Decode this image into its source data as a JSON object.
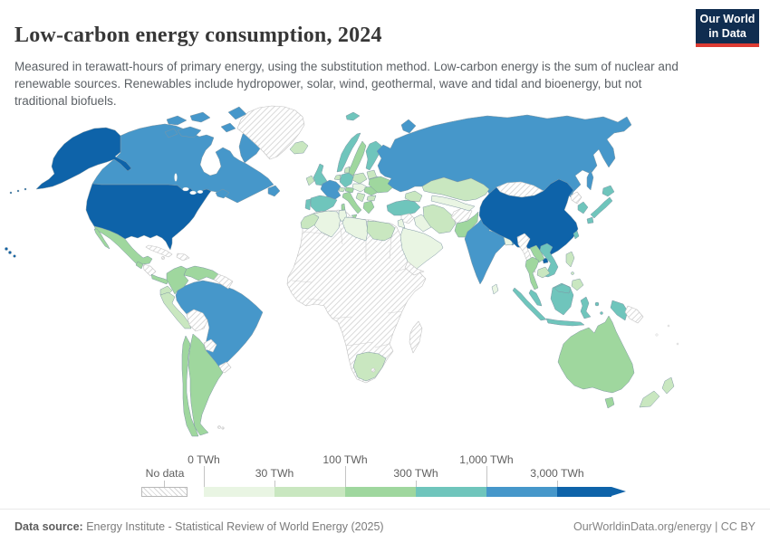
{
  "header": {
    "title": "Low-carbon energy consumption, 2024",
    "subtitle": "Measured in terawatt-hours of primary energy, using the substitution method. Low-carbon energy is the sum of nuclear and renewable sources. Renewables include hydropower, solar, wind, geothermal, wave and tidal and bioenergy, but not traditional biofuels.",
    "logo": {
      "line1": "Our World",
      "line2": "in Data",
      "bg_color": "#102d50",
      "accent_color": "#dc3b33"
    }
  },
  "footer": {
    "source_label": "Data source:",
    "source_text": " Energy Institute - Statistical Review of World Energy (2025)",
    "link_text": "OurWorldinData.org/energy | CC BY"
  },
  "chart_data": {
    "type": "choropleth_map",
    "title": "Low-carbon energy consumption, 2024",
    "unit": "TWh",
    "no_data_label": "No data",
    "legend_ticks": [
      "0 TWh",
      "30 TWh",
      "100 TWh",
      "300 TWh",
      "1,000 TWh",
      "3,000 TWh"
    ],
    "legend_position": "bottom",
    "bins": [
      {
        "range": "0-30",
        "color": "#e9f5e3"
      },
      {
        "range": "30-100",
        "color": "#c9e7c0"
      },
      {
        "range": "100-300",
        "color": "#9fd79e"
      },
      {
        "range": "300-1000",
        "color": "#6fc5bc"
      },
      {
        "range": "1000-3000",
        "color": "#4697ca"
      },
      {
        "range": "3000+",
        "color": "#0e63a9"
      }
    ],
    "regions": [
      {
        "id": "usa",
        "name": "United States",
        "bin": "3000+"
      },
      {
        "id": "china",
        "name": "China",
        "bin": "3000+"
      },
      {
        "id": "canada",
        "name": "Canada",
        "bin": "1000-3000"
      },
      {
        "id": "russia",
        "name": "Russia",
        "bin": "1000-3000"
      },
      {
        "id": "brazil",
        "name": "Brazil",
        "bin": "1000-3000"
      },
      {
        "id": "india",
        "name": "India",
        "bin": "1000-3000"
      },
      {
        "id": "france",
        "name": "France",
        "bin": "1000-3000"
      },
      {
        "id": "norway",
        "name": "Norway",
        "bin": "300-1000"
      },
      {
        "id": "finland",
        "name": "Finland",
        "bin": "300-1000"
      },
      {
        "id": "uk",
        "name": "United Kingdom",
        "bin": "300-1000"
      },
      {
        "id": "germany",
        "name": "Germany",
        "bin": "300-1000"
      },
      {
        "id": "spain",
        "name": "Spain",
        "bin": "300-1000"
      },
      {
        "id": "portugal",
        "name": "Portugal",
        "bin": "300-1000"
      },
      {
        "id": "turkey",
        "name": "Turkey",
        "bin": "300-1000"
      },
      {
        "id": "south-korea",
        "name": "South Korea",
        "bin": "300-1000"
      },
      {
        "id": "japan",
        "name": "Japan",
        "bin": "300-1000"
      },
      {
        "id": "taiwan",
        "name": "Taiwan",
        "bin": "300-1000"
      },
      {
        "id": "vietnam",
        "name": "Vietnam",
        "bin": "300-1000"
      },
      {
        "id": "malaysia",
        "name": "Malaysia",
        "bin": "300-1000"
      },
      {
        "id": "indonesia",
        "name": "Indonesia",
        "bin": "300-1000"
      },
      {
        "id": "sweden",
        "name": "Sweden",
        "bin": "100-300"
      },
      {
        "id": "mexico",
        "name": "Mexico",
        "bin": "100-300"
      },
      {
        "id": "guatemala",
        "name": "Guatemala",
        "bin": "100-300"
      },
      {
        "id": "costa-rica-panama",
        "name": "Costa Rica and Panama",
        "bin": "100-300"
      },
      {
        "id": "colombia",
        "name": "Colombia",
        "bin": "100-300"
      },
      {
        "id": "venezuela",
        "name": "Venezuela",
        "bin": "100-300"
      },
      {
        "id": "argentina",
        "name": "Argentina",
        "bin": "100-300"
      },
      {
        "id": "chile",
        "name": "Chile",
        "bin": "100-300"
      },
      {
        "id": "italy",
        "name": "Italy",
        "bin": "100-300"
      },
      {
        "id": "austria",
        "name": "Austria",
        "bin": "100-300"
      },
      {
        "id": "ukraine",
        "name": "Ukraine",
        "bin": "100-300"
      },
      {
        "id": "romania",
        "name": "Romania",
        "bin": "100-300"
      },
      {
        "id": "greece",
        "name": "Greece",
        "bin": "100-300"
      },
      {
        "id": "pakistan",
        "name": "Pakistan",
        "bin": "100-300"
      },
      {
        "id": "thailand",
        "name": "Thailand",
        "bin": "100-300"
      },
      {
        "id": "laos",
        "name": "Laos",
        "bin": "100-300"
      },
      {
        "id": "australia",
        "name": "Australia",
        "bin": "100-300"
      },
      {
        "id": "iceland",
        "name": "Iceland",
        "bin": "30-100"
      },
      {
        "id": "ireland",
        "name": "Ireland",
        "bin": "30-100"
      },
      {
        "id": "denmark",
        "name": "Denmark",
        "bin": "30-100"
      },
      {
        "id": "netherlands",
        "name": "Netherlands and Belgium",
        "bin": "30-100"
      },
      {
        "id": "poland",
        "name": "Poland",
        "bin": "30-100"
      },
      {
        "id": "baltics",
        "name": "Baltic states",
        "bin": "30-100"
      },
      {
        "id": "switzerland",
        "name": "Switzerland",
        "bin": "30-100"
      },
      {
        "id": "balkans",
        "name": "Western Balkans",
        "bin": "30-100"
      },
      {
        "id": "bulgaria",
        "name": "Bulgaria",
        "bin": "30-100"
      },
      {
        "id": "caucasus",
        "name": "Caucasus",
        "bin": "30-100"
      },
      {
        "id": "iran",
        "name": "Iran",
        "bin": "30-100"
      },
      {
        "id": "kazakhstan",
        "name": "Kazakhstan",
        "bin": "30-100"
      },
      {
        "id": "morocco",
        "name": "Morocco",
        "bin": "30-100"
      },
      {
        "id": "egypt",
        "name": "Egypt",
        "bin": "30-100"
      },
      {
        "id": "south-africa",
        "name": "South Africa",
        "bin": "30-100"
      },
      {
        "id": "ecuador",
        "name": "Ecuador",
        "bin": "30-100"
      },
      {
        "id": "peru",
        "name": "Peru",
        "bin": "30-100"
      },
      {
        "id": "new-zealand",
        "name": "New Zealand",
        "bin": "30-100"
      },
      {
        "id": "philippines",
        "name": "Philippines",
        "bin": "30-100"
      },
      {
        "id": "cambodia",
        "name": "Cambodia",
        "bin": "30-100"
      },
      {
        "id": "algeria",
        "name": "Algeria",
        "bin": "0-30"
      },
      {
        "id": "tunisia",
        "name": "Tunisia",
        "bin": "0-30"
      },
      {
        "id": "libya",
        "name": "Libya",
        "bin": "0-30"
      },
      {
        "id": "saudi",
        "name": "Saudi Arabia and Gulf states",
        "bin": "0-30"
      },
      {
        "id": "iraq",
        "name": "Iraq",
        "bin": "0-30"
      },
      {
        "id": "israel-jordan",
        "name": "Israel and Jordan",
        "bin": "0-30"
      },
      {
        "id": "central-asia",
        "name": "Central Asia",
        "bin": "0-30"
      },
      {
        "id": "belarus",
        "name": "Belarus",
        "bin": "0-30"
      },
      {
        "id": "czech-hungary",
        "name": "Czechia, Slovakia and Hungary",
        "bin": "0-30"
      },
      {
        "id": "nepal",
        "name": "Nepal",
        "bin": "0-30"
      },
      {
        "id": "bangladesh",
        "name": "Bangladesh",
        "bin": "0-30"
      },
      {
        "id": "sri-lanka",
        "name": "Sri Lanka",
        "bin": "0-30"
      },
      {
        "id": "greenland",
        "name": "Greenland",
        "bin": "no-data"
      },
      {
        "id": "honduras-nicaragua",
        "name": "Honduras and Nicaragua",
        "bin": "no-data"
      },
      {
        "id": "cuba",
        "name": "Cuba",
        "bin": "no-data"
      },
      {
        "id": "hispaniola",
        "name": "Hispaniola",
        "bin": "no-data"
      },
      {
        "id": "jamaica",
        "name": "Jamaica",
        "bin": "no-data"
      },
      {
        "id": "guianas",
        "name": "Guianas",
        "bin": "no-data"
      },
      {
        "id": "bolivia",
        "name": "Bolivia",
        "bin": "no-data"
      },
      {
        "id": "paraguay",
        "name": "Paraguay",
        "bin": "no-data"
      },
      {
        "id": "uruguay",
        "name": "Uruguay",
        "bin": "no-data"
      },
      {
        "id": "falklands",
        "name": "Falkland Islands",
        "bin": "no-data"
      },
      {
        "id": "africa-other",
        "name": "Sub-Saharan Africa (most countries)",
        "bin": "no-data"
      },
      {
        "id": "madagascar",
        "name": "Madagascar",
        "bin": "no-data"
      },
      {
        "id": "lesotho",
        "name": "Lesotho",
        "bin": "no-data"
      },
      {
        "id": "yemen",
        "name": "Yemen",
        "bin": "no-data"
      },
      {
        "id": "syria",
        "name": "Syria",
        "bin": "no-data"
      },
      {
        "id": "afghanistan",
        "name": "Afghanistan",
        "bin": "no-data"
      },
      {
        "id": "mongolia",
        "name": "Mongolia",
        "bin": "no-data"
      },
      {
        "id": "north-korea",
        "name": "North Korea",
        "bin": "no-data"
      },
      {
        "id": "myanmar",
        "name": "Myanmar",
        "bin": "no-data"
      },
      {
        "id": "png",
        "name": "Papua New Guinea",
        "bin": "no-data"
      }
    ]
  }
}
